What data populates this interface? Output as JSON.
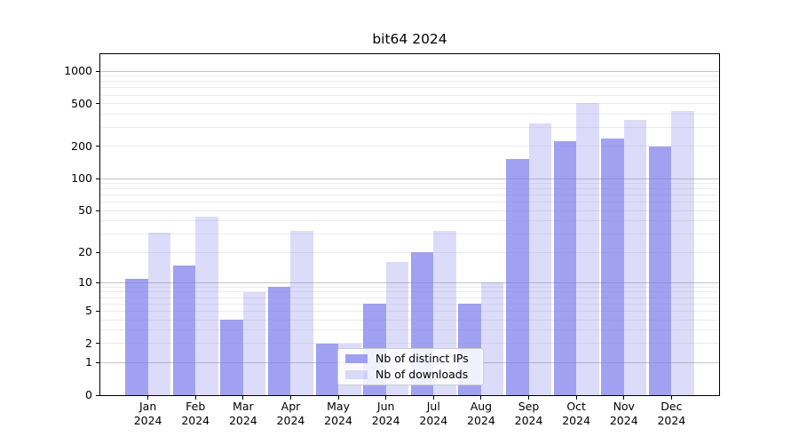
{
  "title": "bit64 2024",
  "legend": {
    "items": [
      {
        "label": "Nb of distinct IPs",
        "series": "ips"
      },
      {
        "label": "Nb of downloads",
        "series": "downloads"
      }
    ]
  },
  "colors": {
    "bar_base": "#7d7deb",
    "ips_alpha": 0.72,
    "downloads_alpha": 0.27,
    "ips_rendered": "#a1a1ef",
    "downloads_rendered": "#dcdcf9",
    "grid_major": "#c4c4c4",
    "grid_minor": "#ececec",
    "spine": "#000000",
    "legend_border": "#cccccc"
  },
  "chart_data": {
    "type": "bar",
    "title": "bit64 2024",
    "categories": [
      "Jan 2024",
      "Feb 2024",
      "Mar 2024",
      "Apr 2024",
      "May 2024",
      "Jun 2024",
      "Jul 2024",
      "Aug 2024",
      "Sep 2024",
      "Oct 2024",
      "Nov 2024",
      "Dec 2024"
    ],
    "series": [
      {
        "name": "Nb of distinct IPs",
        "values": [
          11,
          15,
          4,
          9,
          2,
          6,
          20,
          6,
          152,
          222,
          235,
          200
        ]
      },
      {
        "name": "Nb of downloads",
        "values": [
          31,
          44,
          8,
          32,
          2,
          16,
          32,
          10,
          325,
          508,
          355,
          425
        ]
      }
    ],
    "xlabel": "",
    "ylabel": "",
    "yscale": "log1p",
    "ylim": [
      0,
      1435
    ],
    "yticks": [
      0,
      1,
      2,
      5,
      10,
      20,
      50,
      100,
      200,
      500,
      1000
    ],
    "grid_major_values": [
      1,
      10,
      100,
      1000
    ],
    "grid_minor_values": [
      2,
      3,
      4,
      5,
      6,
      7,
      8,
      9,
      20,
      30,
      40,
      50,
      60,
      70,
      80,
      90,
      200,
      300,
      400,
      500,
      600,
      700,
      800,
      900
    ],
    "grid": "on",
    "legend_position": "lower center"
  }
}
